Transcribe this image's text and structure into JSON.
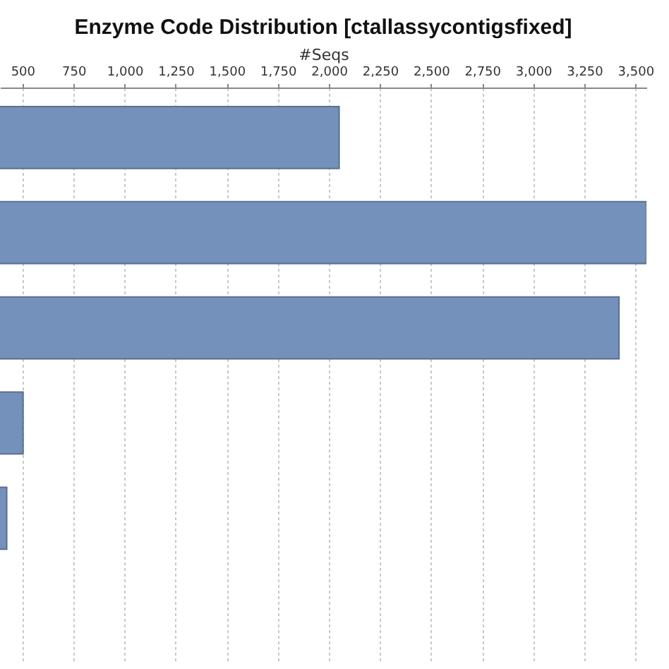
{
  "chart_data": {
    "type": "bar",
    "orientation": "horizontal",
    "title": "Enzyme Code Distribution [ctallassycontigsfixed]",
    "xlabel": "#Seqs",
    "categories": [
      null,
      null,
      null,
      null,
      null,
      null
    ],
    "values": [
      2050,
      3554,
      3420,
      503,
      423,
      null
    ],
    "color": "#7491bb",
    "xlim": [
      390,
      3554
    ],
    "xticks": [
      500,
      750,
      {
        "value": 1000,
        "label": "1,000"
      },
      {
        "value": 1250,
        "label": "1,250"
      },
      {
        "value": 1500,
        "label": "1,500"
      },
      {
        "value": 1750,
        "label": "1,750"
      },
      {
        "value": 2000,
        "label": "2,000"
      },
      {
        "value": 2250,
        "label": "2,250"
      },
      {
        "value": 2500,
        "label": "2,500"
      },
      {
        "value": 2750,
        "label": "2,750"
      },
      {
        "value": 3000,
        "label": "3,000"
      },
      {
        "value": 3250,
        "label": "3,250"
      },
      {
        "value": 3500,
        "label": "3,500"
      }
    ],
    "grid": "x",
    "tick_labels": "x"
  }
}
